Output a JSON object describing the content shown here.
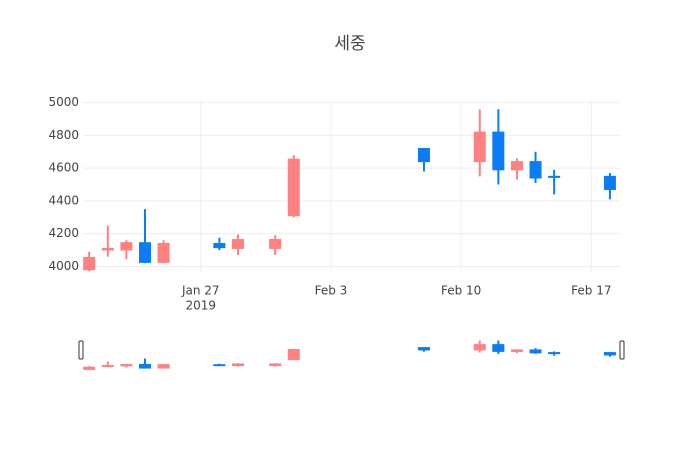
{
  "chart_data": {
    "type": "candlestick",
    "title": "세중",
    "x": [
      "2019-01-21",
      "2019-01-22",
      "2019-01-23",
      "2019-01-24",
      "2019-01-25",
      "2019-01-28",
      "2019-01-29",
      "2019-01-31",
      "2019-02-01",
      "2019-02-08",
      "2019-02-11",
      "2019-02-12",
      "2019-02-13",
      "2019-02-14",
      "2019-02-15",
      "2019-02-18"
    ],
    "open": [
      3980,
      4100,
      4100,
      4145,
      4025,
      4140,
      4110,
      4110,
      4310,
      4720,
      4640,
      4820,
      4590,
      4640,
      4550,
      4550
    ],
    "high": [
      4090,
      4250,
      4160,
      4350,
      4160,
      4175,
      4195,
      4190,
      4680,
      4720,
      4960,
      4960,
      4660,
      4700,
      4590,
      4570
    ],
    "low": [
      3970,
      4060,
      4045,
      4020,
      4020,
      4100,
      4070,
      4070,
      4300,
      4580,
      4550,
      4500,
      4530,
      4510,
      4440,
      4410
    ],
    "close": [
      4055,
      4110,
      4145,
      4025,
      4140,
      4115,
      4165,
      4165,
      4655,
      4640,
      4820,
      4590,
      4640,
      4540,
      4545,
      4470
    ],
    "increasing_color": "#ff8080",
    "decreasing_color": "#0a7cf5",
    "xlim": [
      "2019-01-20T16:00",
      "2019-02-18T13:00"
    ],
    "xticks": [
      {
        "value": "2019-01-27",
        "label": "Jan 27"
      },
      {
        "value": "2019-02-03",
        "label": "Feb 3"
      },
      {
        "value": "2019-02-10",
        "label": "Feb 10"
      },
      {
        "value": "2019-02-17",
        "label": "Feb 17"
      }
    ],
    "x_year_label": "2019",
    "ylim": [
      3960,
      5010
    ],
    "yticks": [
      4000,
      4200,
      4400,
      4600,
      4800,
      5000
    ],
    "grid": true,
    "range_slider": true
  }
}
